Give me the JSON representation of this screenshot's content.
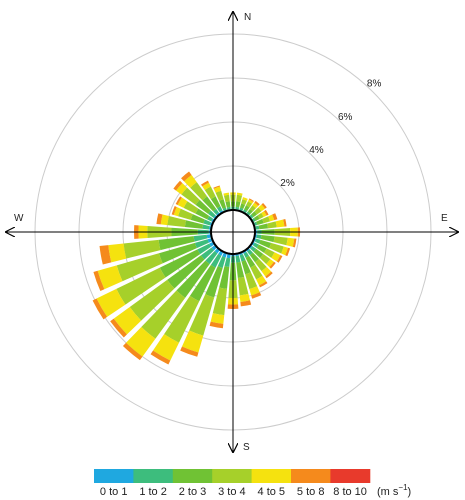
{
  "chart_data": {
    "type": "windrose",
    "compass": {
      "n": "N",
      "e": "E",
      "s": "S",
      "w": "W"
    },
    "radial_unit": "%",
    "radial_max": 9,
    "rings": [
      {
        "value": 2,
        "label": "2%"
      },
      {
        "value": 4,
        "label": "4%"
      },
      {
        "value": 6,
        "label": "6%"
      },
      {
        "value": 8,
        "label": "8%"
      }
    ],
    "calm_offset": 1.0,
    "sector_width_deg": 8,
    "bins": [
      {
        "label": "0 to 1",
        "color": "#1fa8e0"
      },
      {
        "label": "1 to 2",
        "color": "#3dbd7d"
      },
      {
        "label": "2 to 3",
        "color": "#70c234"
      },
      {
        "label": "3 to 4",
        "color": "#a6d02a"
      },
      {
        "label": "4 to 5",
        "color": "#f5e20f"
      },
      {
        "label": "5 to 8",
        "color": "#f58a1c"
      },
      {
        "label": "8 to 10",
        "color": "#e83a2c"
      }
    ],
    "legend_unit_label": "(m s",
    "legend_unit_exponent": "−1",
    "legend_unit_close": ")",
    "directions": [
      {
        "dir": 0,
        "values": [
          0.05,
          0.1,
          0.25,
          0.3,
          0.1,
          0.0,
          0.0
        ]
      },
      {
        "dir": 10,
        "values": [
          0.05,
          0.1,
          0.25,
          0.3,
          0.1,
          0.0,
          0.0
        ]
      },
      {
        "dir": 20,
        "values": [
          0.05,
          0.1,
          0.2,
          0.2,
          0.1,
          0.0,
          0.0
        ]
      },
      {
        "dir": 30,
        "values": [
          0.05,
          0.1,
          0.2,
          0.2,
          0.1,
          0.05,
          0.0
        ]
      },
      {
        "dir": 40,
        "values": [
          0.05,
          0.1,
          0.15,
          0.2,
          0.15,
          0.1,
          0.0
        ]
      },
      {
        "dir": 50,
        "values": [
          0.05,
          0.1,
          0.2,
          0.25,
          0.2,
          0.1,
          0.0
        ]
      },
      {
        "dir": 60,
        "values": [
          0.05,
          0.1,
          0.2,
          0.2,
          0.15,
          0.1,
          0.0
        ]
      },
      {
        "dir": 70,
        "values": [
          0.05,
          0.1,
          0.3,
          0.3,
          0.2,
          0.15,
          0.0
        ]
      },
      {
        "dir": 80,
        "values": [
          0.05,
          0.15,
          0.4,
          0.4,
          0.35,
          0.1,
          0.0
        ]
      },
      {
        "dir": 90,
        "values": [
          0.1,
          0.2,
          0.6,
          0.7,
          0.35,
          0.1,
          0.0
        ]
      },
      {
        "dir": 100,
        "values": [
          0.1,
          0.2,
          0.6,
          0.6,
          0.3,
          0.1,
          0.0
        ]
      },
      {
        "dir": 110,
        "values": [
          0.1,
          0.2,
          0.5,
          0.6,
          0.2,
          0.1,
          0.0
        ]
      },
      {
        "dir": 120,
        "values": [
          0.1,
          0.2,
          0.4,
          0.4,
          0.3,
          0.1,
          0.0
        ]
      },
      {
        "dir": 130,
        "values": [
          0.1,
          0.2,
          0.4,
          0.4,
          0.2,
          0.1,
          0.0
        ]
      },
      {
        "dir": 140,
        "values": [
          0.1,
          0.2,
          0.4,
          0.5,
          0.3,
          0.1,
          0.0
        ]
      },
      {
        "dir": 150,
        "values": [
          0.1,
          0.2,
          0.5,
          0.6,
          0.3,
          0.1,
          0.0
        ]
      },
      {
        "dir": 160,
        "values": [
          0.1,
          0.3,
          0.6,
          0.7,
          0.3,
          0.15,
          0.0
        ]
      },
      {
        "dir": 170,
        "values": [
          0.1,
          0.3,
          0.7,
          0.8,
          0.3,
          0.2,
          0.0
        ]
      },
      {
        "dir": 180,
        "values": [
          0.1,
          0.3,
          0.8,
          0.8,
          0.3,
          0.2,
          0.0
        ]
      },
      {
        "dir": 190,
        "values": [
          0.2,
          0.4,
          1.0,
          1.2,
          0.4,
          0.2,
          0.0
        ]
      },
      {
        "dir": 200,
        "values": [
          0.2,
          0.5,
          1.4,
          1.8,
          0.8,
          0.2,
          0.0
        ]
      },
      {
        "dir": 210,
        "values": [
          0.2,
          0.6,
          1.7,
          2.1,
          0.9,
          0.2,
          0.0
        ]
      },
      {
        "dir": 220,
        "values": [
          0.2,
          0.6,
          1.9,
          2.3,
          1.0,
          0.2,
          0.0
        ]
      },
      {
        "dir": 230,
        "values": [
          0.2,
          0.6,
          1.9,
          2.1,
          0.9,
          0.2,
          0.0
        ]
      },
      {
        "dir": 240,
        "values": [
          0.2,
          0.6,
          1.9,
          2.2,
          1.0,
          0.2,
          0.0
        ]
      },
      {
        "dir": 250,
        "values": [
          0.2,
          0.6,
          1.7,
          2.0,
          0.9,
          0.2,
          0.0
        ]
      },
      {
        "dir": 260,
        "values": [
          0.2,
          0.6,
          1.6,
          1.6,
          0.7,
          0.4,
          0.0
        ]
      },
      {
        "dir": 270,
        "values": [
          0.1,
          0.5,
          1.2,
          1.1,
          0.4,
          0.2,
          0.0
        ]
      },
      {
        "dir": 280,
        "values": [
          0.1,
          0.3,
          0.8,
          0.8,
          0.3,
          0.2,
          0.0
        ]
      },
      {
        "dir": 290,
        "values": [
          0.1,
          0.3,
          0.6,
          0.6,
          0.2,
          0.1,
          0.0
        ]
      },
      {
        "dir": 300,
        "values": [
          0.1,
          0.2,
          0.6,
          0.6,
          0.3,
          0.1,
          0.0
        ]
      },
      {
        "dir": 310,
        "values": [
          0.1,
          0.3,
          0.7,
          0.8,
          0.3,
          0.15,
          0.0
        ]
      },
      {
        "dir": 320,
        "values": [
          0.1,
          0.2,
          0.7,
          0.8,
          0.4,
          0.2,
          0.0
        ]
      },
      {
        "dir": 330,
        "values": [
          0.1,
          0.2,
          0.5,
          0.5,
          0.2,
          0.1,
          0.0
        ]
      },
      {
        "dir": 340,
        "values": [
          0.05,
          0.1,
          0.4,
          0.4,
          0.2,
          0.05,
          0.0
        ]
      },
      {
        "dir": 350,
        "values": [
          0.05,
          0.1,
          0.25,
          0.3,
          0.1,
          0.0,
          0.0
        ]
      }
    ]
  }
}
